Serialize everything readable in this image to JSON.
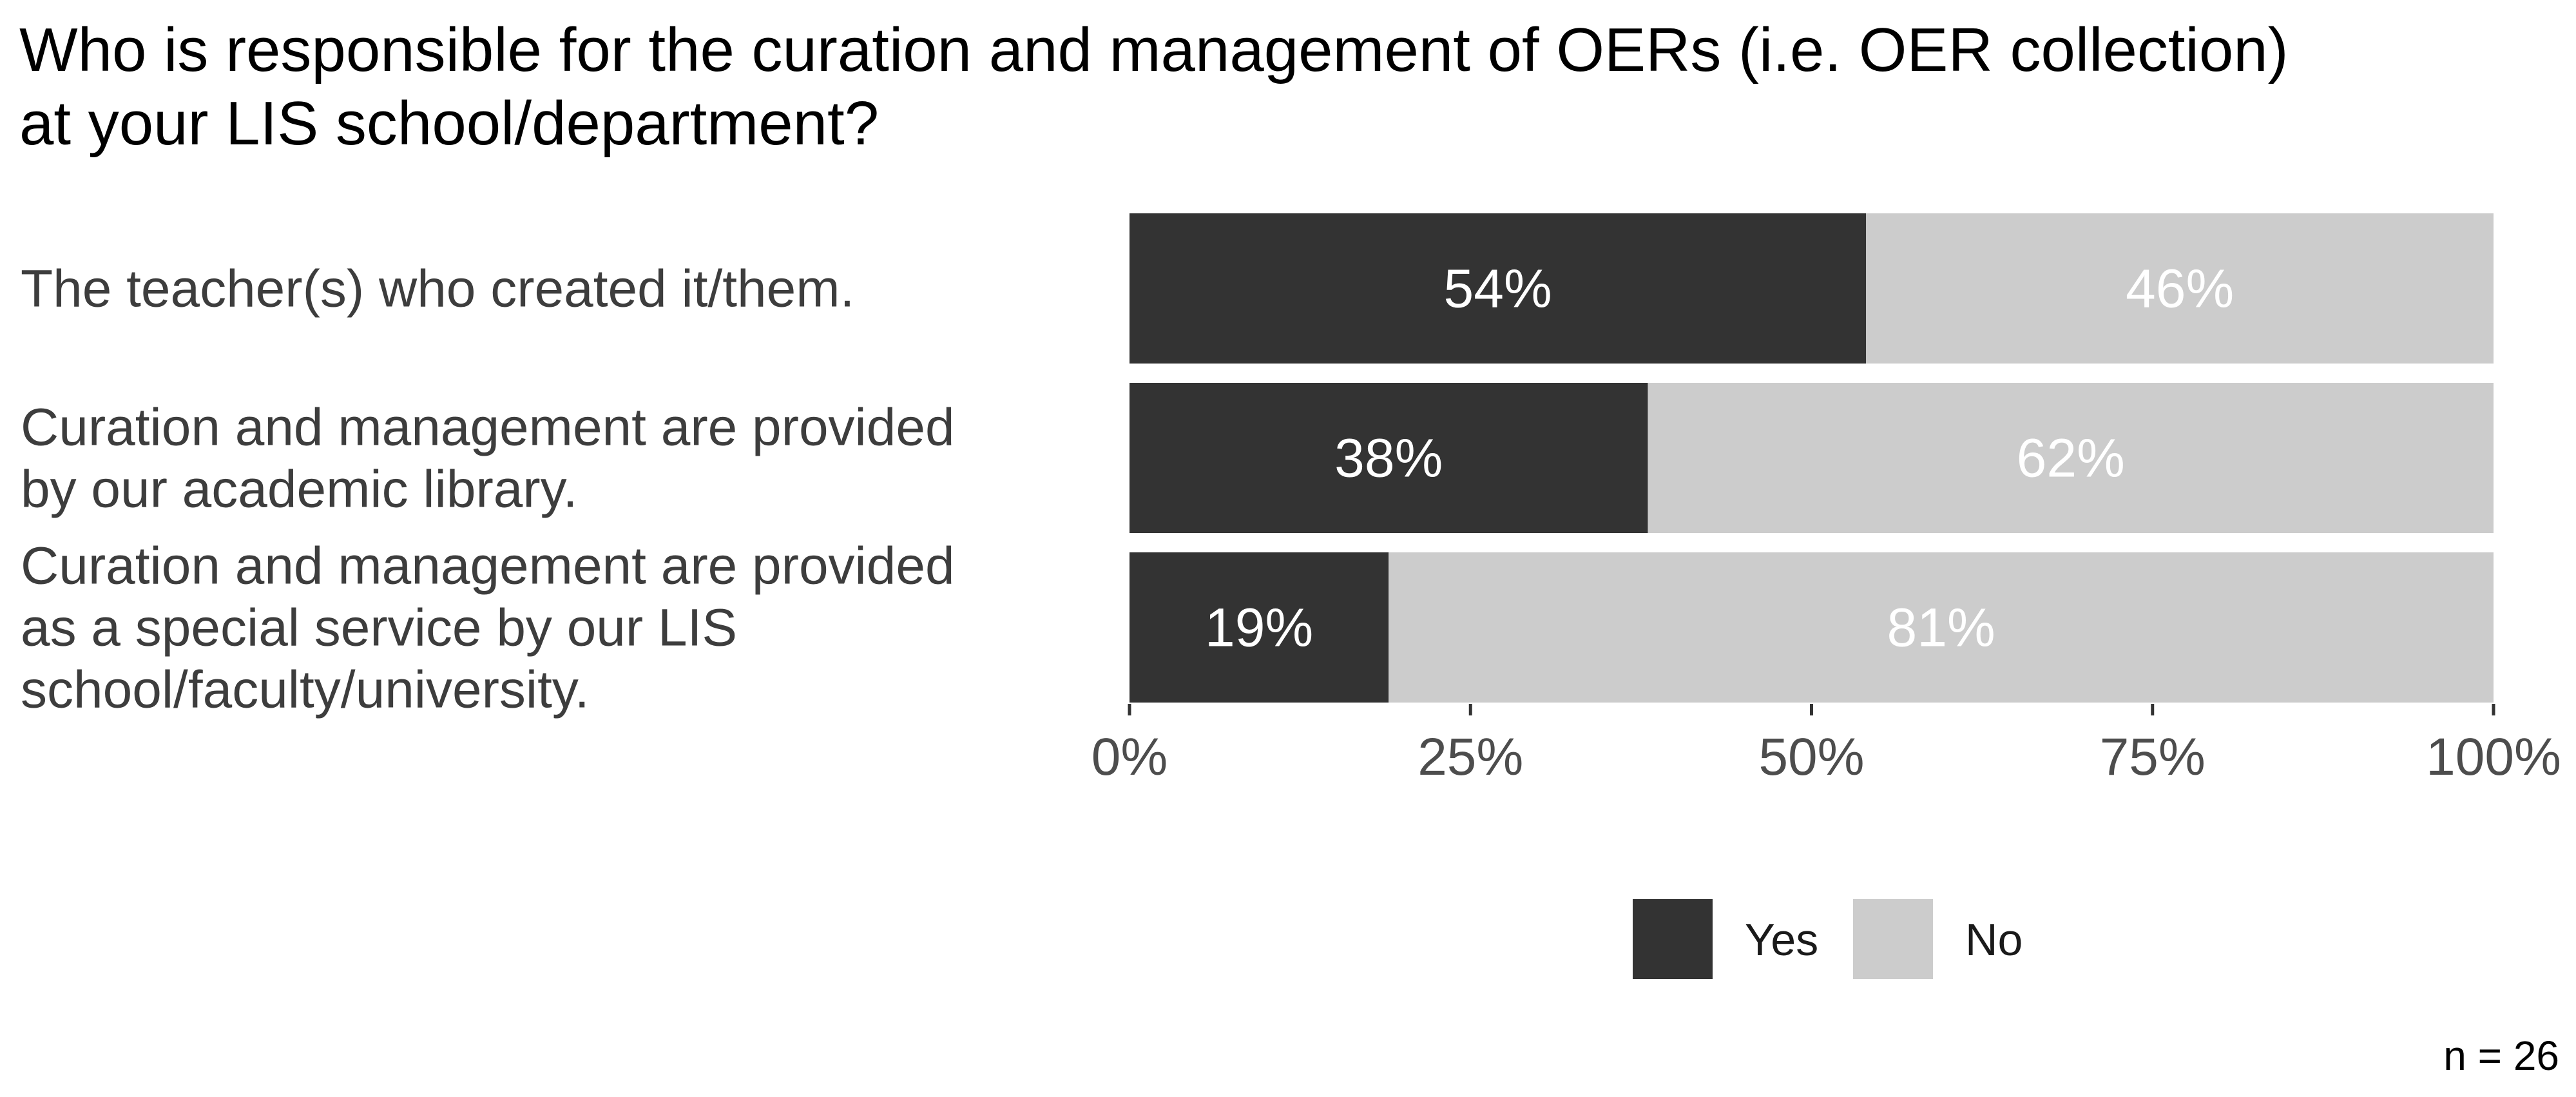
{
  "chart_data": {
    "type": "bar",
    "orientation": "horizontal",
    "stacked": true,
    "title": [
      "Who is responsible for the curation and management of OERs (i.e. OER collection)",
      "at your LIS school/department?"
    ],
    "categories": [
      [
        "The teacher(s) who created it/them."
      ],
      [
        "Curation and management are provided",
        "by our academic library."
      ],
      [
        "Curation and management are provided",
        "as a special service by our LIS",
        "school/faculty/university."
      ]
    ],
    "series": [
      {
        "name": "Yes",
        "color": "#333333",
        "values": [
          54,
          38,
          19
        ],
        "labels": [
          "54%",
          "38%",
          "19%"
        ]
      },
      {
        "name": "No",
        "color": "#cccccc",
        "values": [
          46,
          62,
          81
        ],
        "labels": [
          "46%",
          "62%",
          "81%"
        ]
      }
    ],
    "xlim": [
      0,
      100
    ],
    "ticks": [
      0,
      25,
      50,
      75,
      100
    ],
    "tick_labels": [
      "0%",
      "25%",
      "50%",
      "75%",
      "100%"
    ],
    "legend": {
      "position": "bottom",
      "entries": [
        "Yes",
        "No"
      ]
    },
    "grid": false,
    "caption": "n = 26"
  }
}
